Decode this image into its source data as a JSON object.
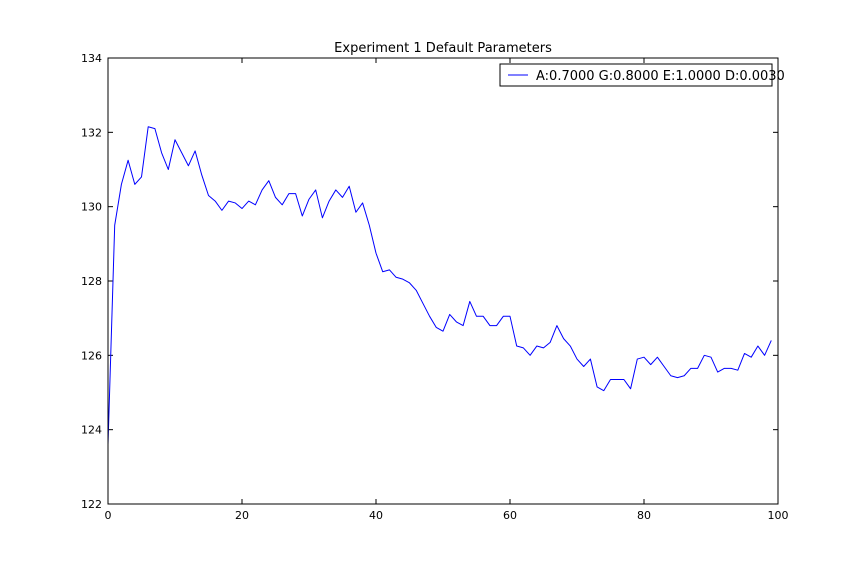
{
  "chart_data": {
    "type": "line",
    "title": "Experiment 1 Default Parameters",
    "xlabel": "",
    "ylabel": "",
    "xlim": [
      0,
      100
    ],
    "ylim": [
      122,
      134
    ],
    "xticks": [
      0,
      20,
      40,
      60,
      80,
      100
    ],
    "yticks": [
      122,
      124,
      126,
      128,
      130,
      132,
      134
    ],
    "grid": false,
    "legend_position": "top-right",
    "series": [
      {
        "name": "A:0.7000 G:0.8000 E:1.0000 D:0.0030",
        "color": "#0000ff",
        "x": [
          0,
          1,
          2,
          3,
          4,
          5,
          6,
          7,
          8,
          9,
          10,
          11,
          12,
          13,
          14,
          15,
          16,
          17,
          18,
          19,
          20,
          21,
          22,
          23,
          24,
          25,
          26,
          27,
          28,
          29,
          30,
          31,
          32,
          33,
          34,
          35,
          36,
          37,
          38,
          39,
          40,
          41,
          42,
          43,
          44,
          45,
          46,
          47,
          48,
          49,
          50,
          51,
          52,
          53,
          54,
          55,
          56,
          57,
          58,
          59,
          60,
          61,
          62,
          63,
          64,
          65,
          66,
          67,
          68,
          69,
          70,
          71,
          72,
          73,
          74,
          75,
          76,
          77,
          78,
          79,
          80,
          81,
          82,
          83,
          84,
          85,
          86,
          87,
          88,
          89,
          90,
          91,
          92,
          93,
          94,
          95,
          96,
          97,
          98,
          99
        ],
        "values": [
          123.6,
          129.5,
          130.6,
          131.25,
          130.6,
          130.8,
          132.15,
          132.1,
          131.45,
          131.0,
          131.8,
          131.45,
          131.1,
          131.5,
          130.85,
          130.3,
          130.15,
          129.9,
          130.15,
          130.1,
          129.95,
          130.15,
          130.05,
          130.45,
          130.7,
          130.25,
          130.05,
          130.35,
          130.35,
          129.75,
          130.2,
          130.45,
          129.7,
          130.15,
          130.45,
          130.25,
          130.55,
          129.85,
          130.1,
          129.5,
          128.75,
          128.25,
          128.3,
          128.1,
          128.05,
          127.95,
          127.75,
          127.4,
          127.05,
          126.75,
          126.65,
          127.1,
          126.9,
          126.8,
          127.45,
          127.05,
          127.05,
          126.8,
          126.8,
          127.05,
          127.05,
          126.25,
          126.2,
          126.0,
          126.25,
          126.2,
          126.35,
          126.8,
          126.45,
          126.25,
          125.9,
          125.7,
          125.9,
          125.15,
          125.05,
          125.35,
          125.35,
          125.35,
          125.1,
          125.9,
          125.95,
          125.75,
          125.95,
          125.7,
          125.45,
          125.4,
          125.45,
          125.65,
          125.65,
          126.0,
          125.95,
          125.55,
          125.65,
          125.65,
          125.6,
          126.05,
          125.95,
          126.25,
          126.0,
          126.4
        ]
      }
    ]
  }
}
